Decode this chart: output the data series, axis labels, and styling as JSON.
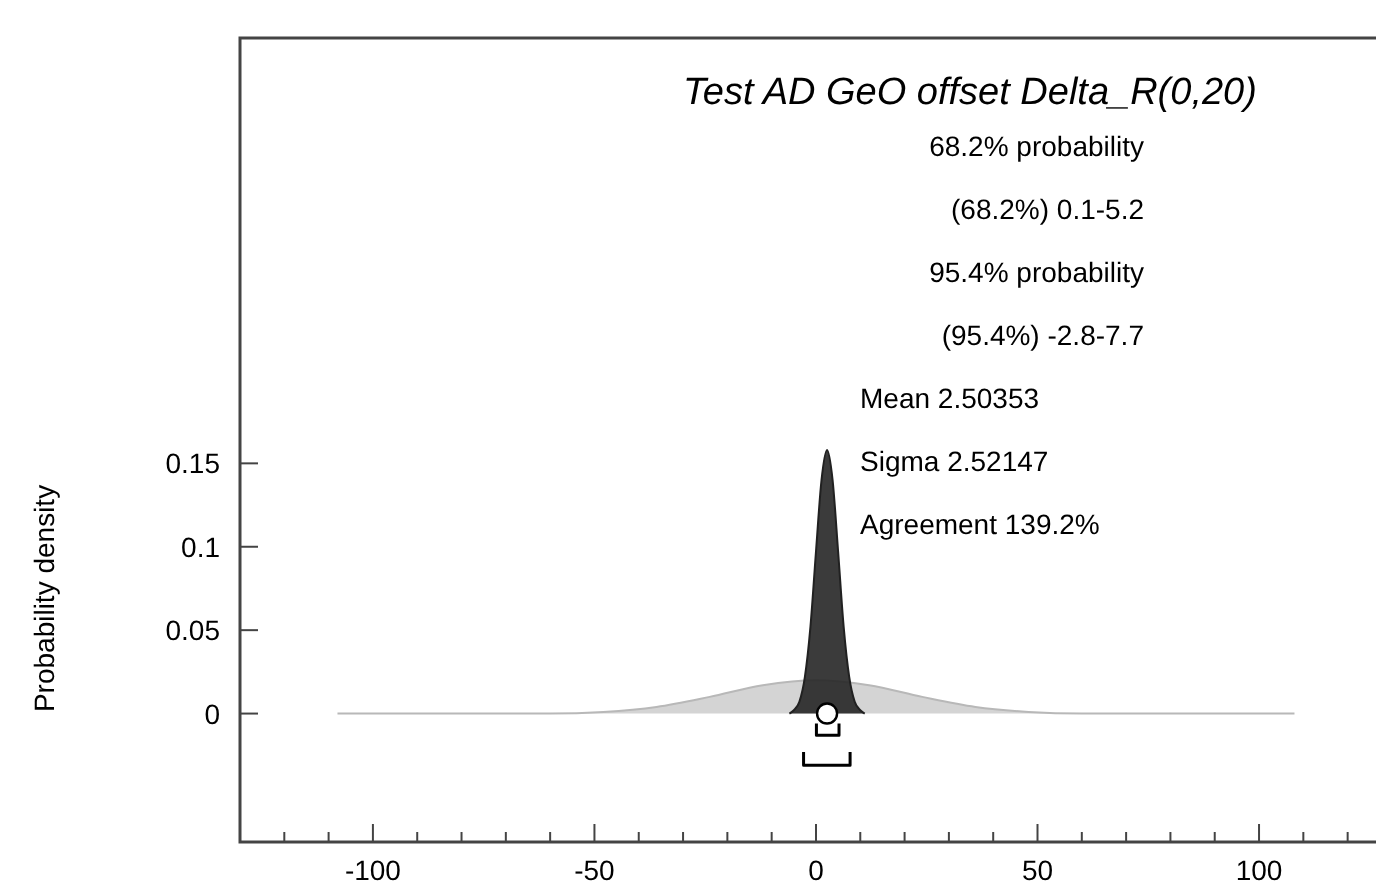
{
  "chart_data": {
    "type": "area",
    "title": "Test AD GeO offset Delta_R(0,20)",
    "ylabel": "Probability density",
    "annotations": [
      "68.2% probability",
      "(68.2%) 0.1-5.2",
      "95.4% probability",
      "(95.4%) -2.8-7.7",
      "Mean 2.50353",
      "Sigma 2.52147",
      "Agreement 139.2%"
    ],
    "xlim": [
      -130,
      126.4
    ],
    "ylim": [
      -0.077,
      0.405
    ],
    "xticks": [
      {
        "value": -120,
        "label": null
      },
      {
        "value": -110,
        "label": null
      },
      -100,
      {
        "value": -90,
        "label": null
      },
      {
        "value": -80,
        "label": null
      },
      {
        "value": -70,
        "label": null
      },
      {
        "value": -60,
        "label": null
      },
      -50,
      {
        "value": -40,
        "label": null
      },
      {
        "value": -30,
        "label": null
      },
      {
        "value": -20,
        "label": null
      },
      {
        "value": -10,
        "label": null
      },
      0,
      {
        "value": 10,
        "label": null
      },
      {
        "value": 20,
        "label": null
      },
      {
        "value": 30,
        "label": null
      },
      {
        "value": 40,
        "label": null
      },
      50,
      {
        "value": 60,
        "label": null
      },
      {
        "value": 70,
        "label": null
      },
      {
        "value": 80,
        "label": null
      },
      {
        "value": 90,
        "label": null
      },
      100,
      {
        "value": 110,
        "label": null
      },
      {
        "value": 120,
        "label": null
      }
    ],
    "yticks": [
      0,
      0.05,
      0.1,
      0.15
    ],
    "grid": false,
    "series": [
      {
        "color": "#d4d4d4",
        "x": [
          -108,
          -96,
          -84,
          -72,
          -60,
          -48,
          -36,
          -24,
          -12,
          0,
          12,
          24,
          36,
          48,
          60,
          72,
          84,
          96,
          108
        ],
        "values": [
          0,
          0,
          0,
          0,
          0,
          0.001,
          0.004,
          0.01,
          0.017,
          0.02,
          0.017,
          0.01,
          0.004,
          0.001,
          0,
          0,
          0,
          0,
          0
        ]
      },
      {
        "type": "area",
        "color": "#262626",
        "x": [
          -6,
          -5,
          -3.75,
          -2.5,
          -1.25,
          0,
          1.25,
          2.5,
          3.75,
          5,
          6.25,
          7.5,
          8.75,
          10,
          11
        ],
        "values": [
          0,
          0.002,
          0.007,
          0.022,
          0.052,
          0.097,
          0.14,
          0.158,
          0.14,
          0.097,
          0.052,
          0.022,
          0.007,
          0.002,
          0
        ]
      },
      {
        "type": "scatter",
        "marker": "circle",
        "color": "#ffffff",
        "x": [
          2.50353
        ],
        "values": [
          0
        ]
      },
      {
        "type": "line",
        "color": "#000000",
        "x": [
          0.1,
          0.1,
          5.2,
          5.2
        ],
        "values": [
          -0.006,
          -0.013,
          -0.013,
          -0.006
        ]
      },
      {
        "type": "line",
        "color": "#000000",
        "x": [
          -2.8,
          -2.8,
          7.7,
          7.7
        ],
        "values": [
          -0.023,
          -0.031,
          -0.031,
          -0.023
        ]
      }
    ]
  }
}
